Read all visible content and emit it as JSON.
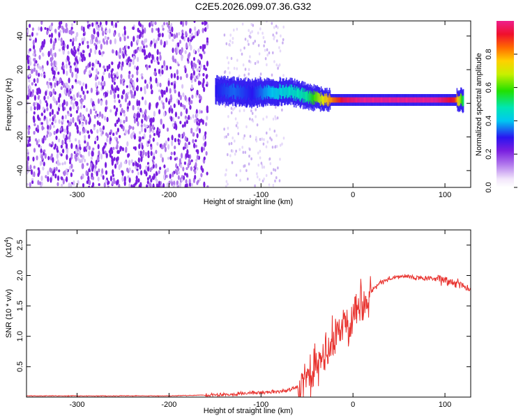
{
  "title": "C2E5.2026.099.07.36.G32",
  "colors": {
    "signal": "#e8312d",
    "scatter": "#7a1fe0",
    "axis": "#000000"
  },
  "chart_data": [
    {
      "type": "heatmap",
      "xlabel": "Height of straight line (km)",
      "ylabel": "Frequency (Hz)",
      "xlim": [
        -355,
        128
      ],
      "ylim": [
        -50,
        49
      ],
      "xticks": [
        "-300",
        "-200",
        "-100",
        "0",
        "100"
      ],
      "yticks": [
        "-40",
        "-20",
        "0",
        "20",
        "40"
      ],
      "grid": false,
      "colorbar": {
        "label": "Normalized spectral amplitude",
        "range": [
          0.0,
          1.0
        ],
        "ticks": [
          "0.0",
          "0.2",
          "0.4",
          "0.6",
          "0.8"
        ]
      },
      "ridge": {
        "x": [
          -150,
          -130,
          -110,
          -90,
          -70,
          -50,
          -30,
          -10,
          10,
          30,
          50,
          70,
          90,
          110,
          120
        ],
        "freq": [
          8,
          7,
          6,
          7,
          7,
          4,
          2,
          2,
          2,
          2,
          2,
          2,
          2,
          2,
          2
        ],
        "amplitude": [
          0.3,
          0.35,
          0.3,
          0.4,
          0.45,
          0.5,
          0.75,
          0.95,
          1.0,
          1.0,
          1.0,
          1.0,
          1.0,
          0.9,
          0.5
        ]
      }
    },
    {
      "type": "line",
      "xlabel": "Height of straight line (km)",
      "ylabel": "SNR (10 * v/v)",
      "scale_label": "(x10",
      "scale_exp": "4",
      "scale_close": ")",
      "xlim": [
        -355,
        128
      ],
      "ylim": [
        0,
        2.75
      ],
      "xticks": [
        "-300",
        "-200",
        "-100",
        "0",
        "100"
      ],
      "yticks": [
        "0.5",
        "1.0",
        "1.5",
        "2.0",
        "2.5"
      ],
      "grid": false,
      "series": [
        {
          "x": [
            -355,
            -300,
            -250,
            -200,
            -170,
            -150,
            -130,
            -110,
            -90,
            -70,
            -50,
            -40,
            -30,
            -20,
            -10,
            0,
            10,
            20,
            30,
            40,
            50,
            60,
            70,
            80,
            90,
            100,
            110,
            118,
            128
          ],
          "y": [
            0.02,
            0.02,
            0.02,
            0.02,
            0.03,
            0.04,
            0.05,
            0.07,
            0.08,
            0.11,
            0.25,
            0.45,
            0.7,
            0.95,
            1.2,
            1.4,
            1.6,
            1.75,
            1.88,
            1.95,
            1.98,
            1.98,
            1.96,
            1.95,
            1.94,
            1.92,
            1.88,
            1.85,
            1.78
          ]
        }
      ]
    }
  ]
}
